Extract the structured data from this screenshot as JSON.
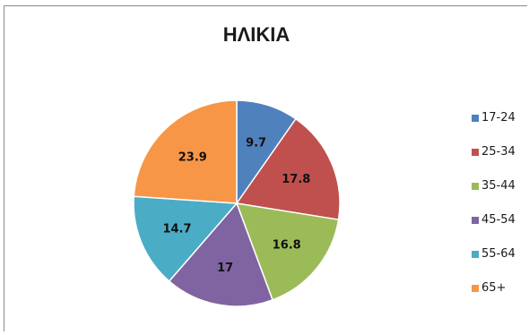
{
  "chart_data": {
    "type": "pie",
    "title": "ΗΛΙΚΙΑ",
    "categories": [
      "17-24",
      "25-34",
      "35-44",
      "45-54",
      "55-64",
      "65+"
    ],
    "values": [
      9.7,
      17.8,
      16.8,
      17,
      14.7,
      23.9
    ],
    "value_labels": [
      "9.7",
      "17.8",
      "16.8",
      "17",
      "14.7",
      "23.9"
    ],
    "colors": [
      "#4f81bd",
      "#c0504d",
      "#9bbb59",
      "#8064a2",
      "#4bacc6",
      "#f79646"
    ],
    "legend_position": "right",
    "start_angle": "top, clockwise"
  }
}
